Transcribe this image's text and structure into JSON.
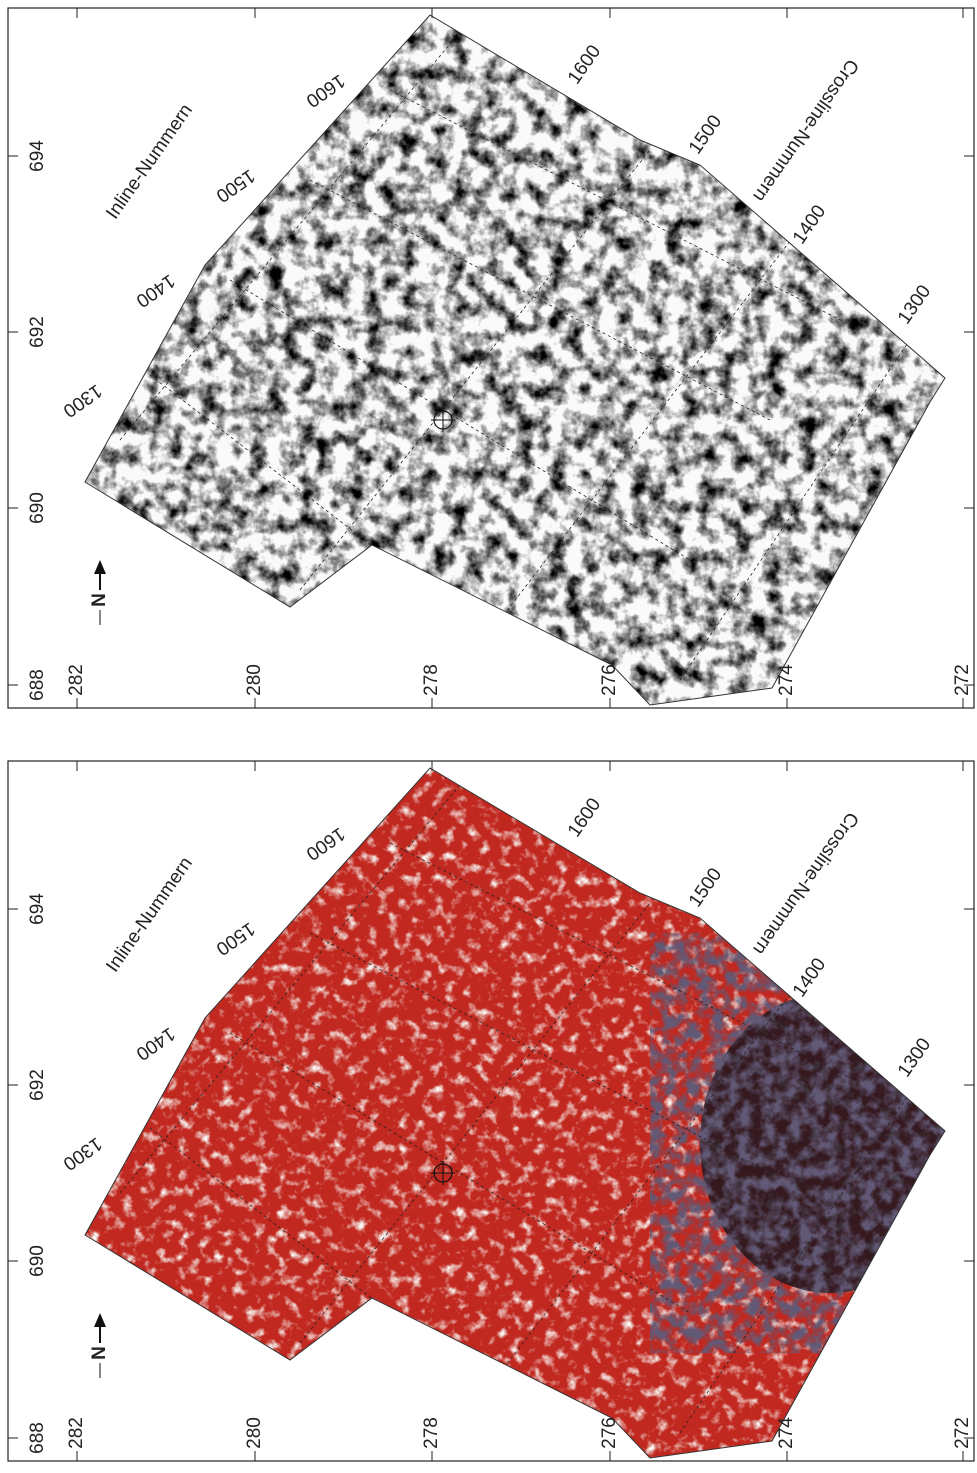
{
  "panels": [
    {
      "style": "gray",
      "x_ticks": [
        688,
        690,
        692,
        694
      ],
      "y_ticks": [
        282,
        280,
        278,
        276,
        274,
        272
      ],
      "north": "N",
      "inline_label": "Inline-Nummern",
      "inline_numbers": [
        1300,
        1400,
        1500,
        1600
      ],
      "crossline_label": "Crossline-Nummern",
      "crossline_numbers": [
        1600,
        1500,
        1400,
        1300
      ]
    },
    {
      "style": "red",
      "x_ticks": [
        688,
        690,
        692,
        694
      ],
      "y_ticks": [
        282,
        280,
        278,
        276,
        274,
        272
      ],
      "north": "N",
      "inline_label": "Inline-Nummern",
      "inline_numbers": [
        1300,
        1400,
        1500,
        1600
      ],
      "crossline_label": "Crossline-Nummern",
      "crossline_numbers": [
        1600,
        1500,
        1400,
        1300
      ]
    }
  ]
}
